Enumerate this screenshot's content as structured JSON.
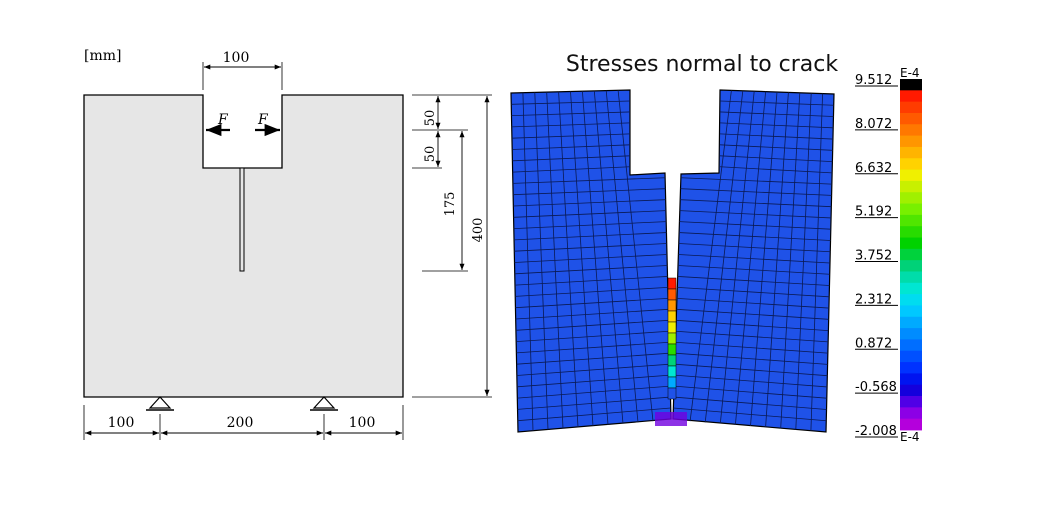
{
  "left_diagram": {
    "unit_label": "[mm]",
    "notch_width": "100",
    "force_left": "F",
    "force_right": "F",
    "dim_50_top": "50",
    "dim_50_second": "50",
    "dim_175": "175",
    "dim_400": "400",
    "bottom_left": "100",
    "bottom_middle": "200",
    "bottom_right": "100"
  },
  "right_plot": {
    "title": "Stresses normal to crack",
    "colorbar_exponent_top": "E-4",
    "colorbar_exponent_bottom": "E-4",
    "colorbar_ticks": [
      "9.512",
      "8.072",
      "6.632",
      "5.192",
      "3.752",
      "2.312",
      "0.872",
      "-0.568",
      "-2.008"
    ],
    "colorbar_colors": [
      "#000000",
      "#ff1a00",
      "#ff3c00",
      "#ff5a00",
      "#ff7800",
      "#ff9600",
      "#ffb400",
      "#ffd200",
      "#f0f000",
      "#c8f000",
      "#a0f000",
      "#78f000",
      "#50e600",
      "#28dc00",
      "#00d200",
      "#00d23c",
      "#00d278",
      "#00dcaa",
      "#00e6d2",
      "#00dcf0",
      "#00c8ff",
      "#00aaff",
      "#008cff",
      "#006eff",
      "#0050ff",
      "#0032ff",
      "#0014f0",
      "#1400dc",
      "#5000e6",
      "#8c00e6",
      "#b400dc"
    ]
  }
}
